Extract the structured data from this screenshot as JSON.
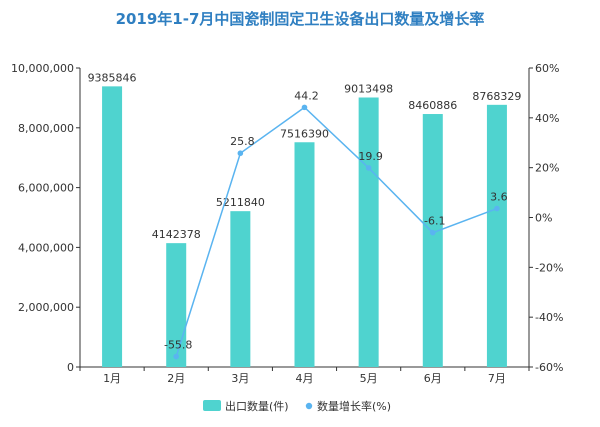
{
  "chart_data": {
    "type": "bar",
    "title": "2019年1-7月中国瓷制固定卫生设备出口数量及增长率",
    "categories": [
      "1月",
      "2月",
      "3月",
      "4月",
      "5月",
      "6月",
      "7月"
    ],
    "series": [
      {
        "name": "出口数量(件)",
        "type": "bar",
        "axis": "left",
        "values": [
          9385846,
          4142378,
          5211840,
          7516390,
          9013498,
          8460886,
          8768329
        ],
        "labels": [
          "9385846",
          "4142378",
          "5211840",
          "7516390",
          "9013498",
          "8460886",
          "8768329"
        ],
        "color": "#4fd3cf"
      },
      {
        "name": "数量增长率(%)",
        "type": "line",
        "axis": "right",
        "values": [
          null,
          -55.8,
          25.8,
          44.2,
          19.9,
          -6.1,
          3.6
        ],
        "labels": [
          "",
          "-55.8",
          "25.8",
          "44.2",
          "19.9",
          "-6.1",
          "3.6"
        ],
        "color": "#5ab4f0"
      }
    ],
    "y_left": {
      "min": 0,
      "max": 10000000,
      "ticks": [
        0,
        2000000,
        4000000,
        6000000,
        8000000,
        10000000
      ],
      "tick_labels": [
        "0",
        "2,000,000",
        "4,000,000",
        "6,000,000",
        "8,000,000",
        "10,000,000"
      ]
    },
    "y_right": {
      "min": -60,
      "max": 60,
      "ticks": [
        -60,
        -40,
        -20,
        0,
        20,
        40,
        60
      ],
      "tick_labels": [
        "-60%",
        "-40%",
        "-20%",
        "0%",
        "20%",
        "40%",
        "60%"
      ]
    },
    "grid": false,
    "legend": "bottom"
  }
}
